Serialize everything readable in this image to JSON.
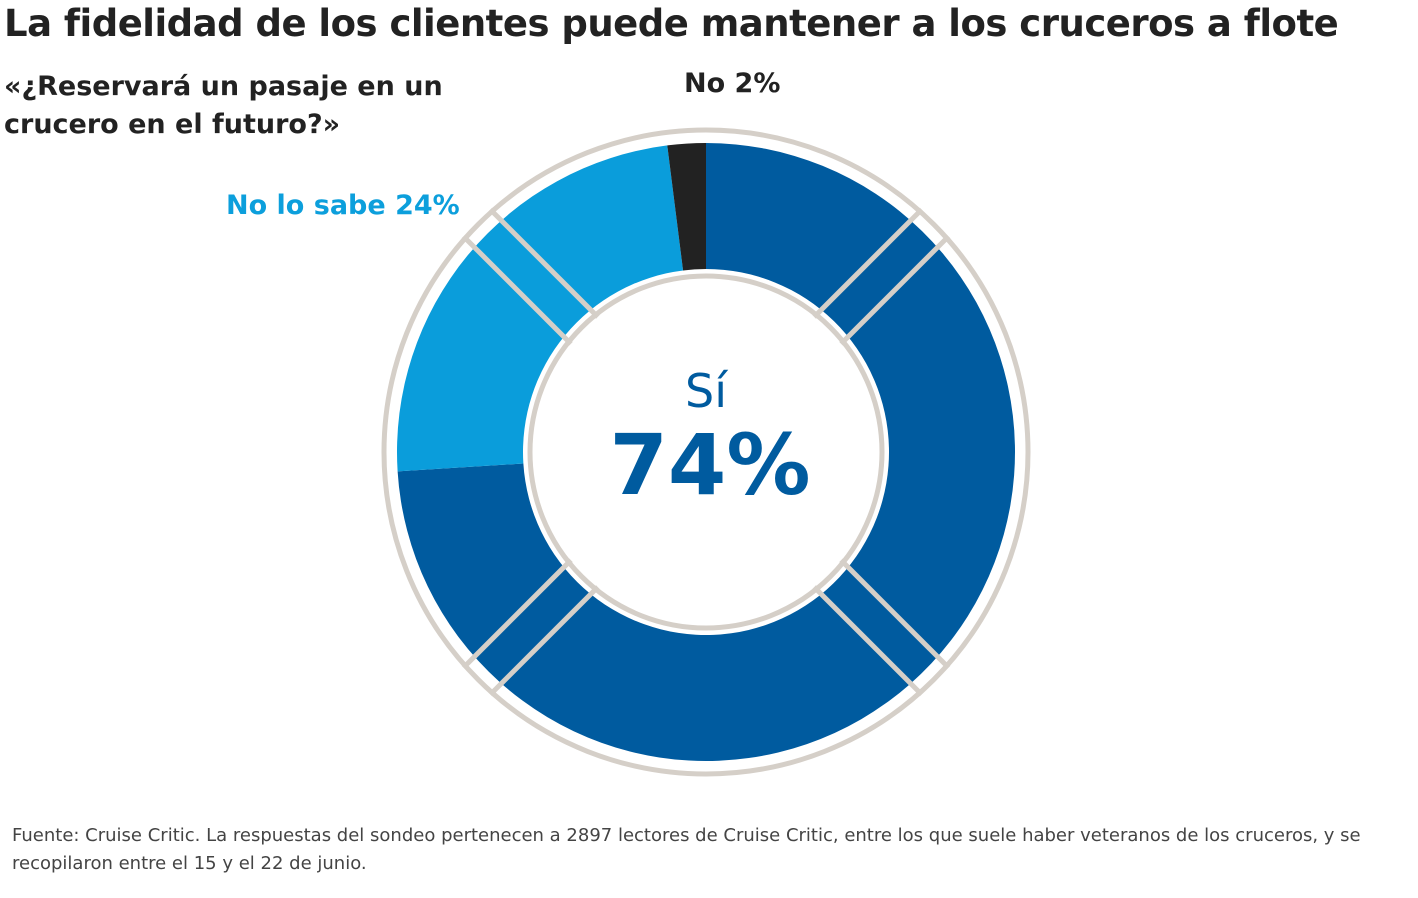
{
  "title": "La fidelidad de los clientes puede mantener a los cruceros a flote",
  "subtitle": "«¿Reservará un pasaje en un crucero en el futuro?»",
  "source": "Fuente: Cruise Critic. La respuestas del sondeo pertenecen a 2897 lectores de Cruise Critic, entre los que suele haber veteranos de los cruceros, y se recopilaron entre el 15 y el 22 de junio.",
  "chart_data": {
    "type": "pie",
    "variant": "donut",
    "title": "La fidelidad de los clientes puede mantener a los cruceros a flote",
    "subtitle": "«¿Reservará un pasaje en un crucero en el futuro?»",
    "slices": [
      {
        "name": "Sí",
        "value": 74,
        "color": "#005b9f",
        "label_pct": "74%"
      },
      {
        "name": "No lo sabe",
        "value": 24,
        "color": "#0a9ddb",
        "label": "No lo sabe 24%"
      },
      {
        "name": "No",
        "value": 2,
        "color": "#222222",
        "label": "No 2%"
      }
    ],
    "center_label": {
      "name": "Sí",
      "value": "74%"
    }
  }
}
